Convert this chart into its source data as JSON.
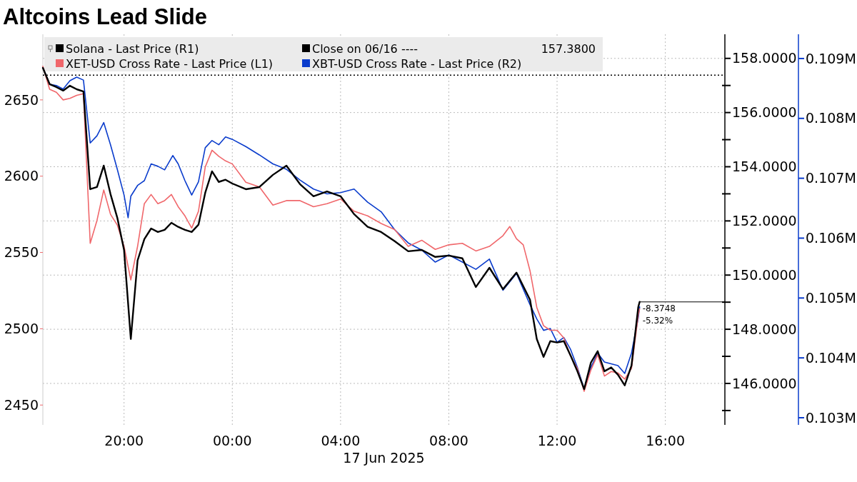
{
  "chart_data": {
    "type": "line",
    "title": "Altcoins Lead Slide",
    "xlabel": "17 Jun 2025",
    "xlim": [
      "2025-06-16T17:00",
      "2025-06-17T18:12"
    ],
    "xticks": [
      {
        "value": "2025-06-16T20:00",
        "label": "20:00"
      },
      {
        "value": "2025-06-17T00:00",
        "label": "00:00"
      },
      {
        "value": "2025-06-17T04:00",
        "label": "04:00"
      },
      {
        "value": "2025-06-17T08:00",
        "label": "08:00"
      },
      {
        "value": "2025-06-17T12:00",
        "label": "12:00"
      },
      {
        "value": "2025-06-17T16:00",
        "label": "16:00"
      }
    ],
    "ylim": [
      2437,
      2693
    ],
    "yticks": [
      2450,
      2500,
      2550,
      2600,
      2650
    ],
    "y2lim": [
      144.47,
      158.89
    ],
    "y2ticks": [
      {
        "value": 145,
        "label": null
      },
      {
        "value": 146,
        "label": "146.0000"
      },
      {
        "value": 147,
        "label": null
      },
      {
        "value": 148,
        "label": "148.0000"
      },
      {
        "value": 149,
        "label": null
      },
      {
        "value": 150,
        "label": "150.0000"
      },
      {
        "value": 151,
        "label": null
      },
      {
        "value": 152,
        "label": "152.0000"
      },
      {
        "value": 153,
        "label": null
      },
      {
        "value": 154,
        "label": "154.0000"
      },
      {
        "value": 155,
        "label": null
      },
      {
        "value": 156,
        "label": "156.0000"
      },
      {
        "value": 157,
        "label": null
      },
      {
        "value": 158,
        "label": "158.0000"
      }
    ],
    "y3lim": [
      102881,
      109405
    ],
    "y3ticks": [
      {
        "value": 103000,
        "label": "0.103M"
      },
      {
        "value": 104000,
        "label": "0.104M"
      },
      {
        "value": 105000,
        "label": "0.105M"
      },
      {
        "value": 106000,
        "label": "0.106M"
      },
      {
        "value": 107000,
        "label": "0.107M"
      },
      {
        "value": 108000,
        "label": "0.108M"
      },
      {
        "value": 109000,
        "label": "0.109M"
      }
    ],
    "grid": true,
    "legend": "top left",
    "line_style": "solid",
    "marker": "none",
    "ref_lines": [
      {
        "axis": "y2",
        "value": 157.38,
        "label": "Close on 06/16 ----",
        "color": "#000000",
        "line_style": "dotted"
      }
    ],
    "annotations": [
      "157.3800",
      "-8.3748",
      "-5.32%"
    ],
    "series": [
      {
        "name": "Solana - Last Price (R1)",
        "color": "#000000",
        "axis": "y2",
        "x": [
          "2025-06-16T17:00",
          "2025-06-16T17:15",
          "2025-06-16T17:30",
          "2025-06-16T17:45",
          "2025-06-16T18:00",
          "2025-06-16T18:15",
          "2025-06-16T18:30",
          "2025-06-16T18:45",
          "2025-06-16T19:00",
          "2025-06-16T19:15",
          "2025-06-16T19:30",
          "2025-06-16T19:45",
          "2025-06-16T20:00",
          "2025-06-16T20:15",
          "2025-06-16T20:30",
          "2025-06-16T20:45",
          "2025-06-16T21:00",
          "2025-06-16T21:15",
          "2025-06-16T21:30",
          "2025-06-16T21:45",
          "2025-06-16T22:00",
          "2025-06-16T22:15",
          "2025-06-16T22:30",
          "2025-06-16T22:45",
          "2025-06-16T23:00",
          "2025-06-16T23:15",
          "2025-06-16T23:30",
          "2025-06-16T23:45",
          "2025-06-17T00:00",
          "2025-06-17T00:30",
          "2025-06-17T01:00",
          "2025-06-17T01:30",
          "2025-06-17T02:00",
          "2025-06-17T02:30",
          "2025-06-17T03:00",
          "2025-06-17T03:30",
          "2025-06-17T04:00",
          "2025-06-17T04:30",
          "2025-06-17T05:00",
          "2025-06-17T05:30",
          "2025-06-17T06:00",
          "2025-06-17T06:30",
          "2025-06-17T07:00",
          "2025-06-17T07:30",
          "2025-06-17T08:00",
          "2025-06-17T08:30",
          "2025-06-17T09:00",
          "2025-06-17T09:30",
          "2025-06-17T10:00",
          "2025-06-17T10:30",
          "2025-06-17T11:00",
          "2025-06-17T11:15",
          "2025-06-17T11:30",
          "2025-06-17T11:45",
          "2025-06-17T12:00",
          "2025-06-17T12:15",
          "2025-06-17T12:30",
          "2025-06-17T12:45",
          "2025-06-17T13:00",
          "2025-06-17T13:15",
          "2025-06-17T13:30",
          "2025-06-17T13:45",
          "2025-06-17T14:00",
          "2025-06-17T14:15",
          "2025-06-17T14:30",
          "2025-06-17T14:45",
          "2025-06-17T15:00",
          "2025-06-17T15:03"
        ],
        "values": [
          157.65,
          157.05,
          156.94,
          156.81,
          156.99,
          156.86,
          156.78,
          153.17,
          153.25,
          154.04,
          152.99,
          152.12,
          150.93,
          147.64,
          150.54,
          151.33,
          151.72,
          151.59,
          151.67,
          151.93,
          151.78,
          151.67,
          151.59,
          151.86,
          153.04,
          153.83,
          153.44,
          153.52,
          153.38,
          153.17,
          153.25,
          153.7,
          154.04,
          153.36,
          152.91,
          153.09,
          152.91,
          152.25,
          151.78,
          151.59,
          151.25,
          150.88,
          150.93,
          150.67,
          150.72,
          150.62,
          149.56,
          150.27,
          149.48,
          150.09,
          149.09,
          147.64,
          146.98,
          147.56,
          147.51,
          147.56,
          147.03,
          146.45,
          145.79,
          146.77,
          147.19,
          146.45,
          146.59,
          146.32,
          145.93,
          146.66,
          148.82,
          149.01
        ]
      },
      {
        "name": "XET-USD Cross Rate - Last Price (L1)",
        "color": "#f0676b",
        "x": [
          "2025-06-16T17:00",
          "2025-06-16T17:15",
          "2025-06-16T17:30",
          "2025-06-16T17:45",
          "2025-06-16T18:00",
          "2025-06-16T18:15",
          "2025-06-16T18:30",
          "2025-06-16T18:45",
          "2025-06-16T19:00",
          "2025-06-16T19:15",
          "2025-06-16T19:30",
          "2025-06-16T19:45",
          "2025-06-16T20:00",
          "2025-06-16T20:15",
          "2025-06-16T20:30",
          "2025-06-16T20:45",
          "2025-06-16T21:00",
          "2025-06-16T21:15",
          "2025-06-16T21:30",
          "2025-06-16T21:45",
          "2025-06-16T22:00",
          "2025-06-16T22:15",
          "2025-06-16T22:30",
          "2025-06-16T22:45",
          "2025-06-16T23:00",
          "2025-06-16T23:15",
          "2025-06-16T23:30",
          "2025-06-16T23:45",
          "2025-06-17T00:00",
          "2025-06-17T00:30",
          "2025-06-17T01:00",
          "2025-06-17T01:30",
          "2025-06-17T02:00",
          "2025-06-17T02:30",
          "2025-06-17T03:00",
          "2025-06-17T03:30",
          "2025-06-17T04:00",
          "2025-06-17T04:30",
          "2025-06-17T05:00",
          "2025-06-17T05:30",
          "2025-06-17T06:00",
          "2025-06-17T06:30",
          "2025-06-17T07:00",
          "2025-06-17T07:30",
          "2025-06-17T08:00",
          "2025-06-17T08:30",
          "2025-06-17T09:00",
          "2025-06-17T09:30",
          "2025-06-17T10:00",
          "2025-06-17T10:15",
          "2025-06-17T10:30",
          "2025-06-17T10:45",
          "2025-06-17T11:00",
          "2025-06-17T11:15",
          "2025-06-17T11:30",
          "2025-06-17T11:45",
          "2025-06-17T12:00",
          "2025-06-17T12:15",
          "2025-06-17T12:30",
          "2025-06-17T12:45",
          "2025-06-17T13:00",
          "2025-06-17T13:15",
          "2025-06-17T13:30",
          "2025-06-17T13:45",
          "2025-06-17T14:00",
          "2025-06-17T14:15",
          "2025-06-17T14:30",
          "2025-06-17T14:45",
          "2025-06-17T15:00",
          "2025-06-17T15:03"
        ],
        "values": [
          2672,
          2657,
          2655,
          2650,
          2651,
          2653,
          2654,
          2556,
          2571,
          2591,
          2575,
          2568,
          2554,
          2532,
          2554,
          2582,
          2588,
          2582,
          2584,
          2588,
          2580,
          2574,
          2566,
          2577,
          2606,
          2617,
          2613,
          2610,
          2608,
          2596,
          2593,
          2581,
          2584,
          2584,
          2580,
          2582,
          2585,
          2577,
          2574,
          2569,
          2565,
          2554,
          2558,
          2552,
          2555,
          2556,
          2551,
          2554,
          2561,
          2567,
          2559,
          2555,
          2538,
          2514,
          2502,
          2499,
          2499,
          2494,
          2482,
          2474,
          2459,
          2473,
          2483,
          2469,
          2472,
          2471,
          2467,
          2474,
          2509,
          2513
        ]
      },
      {
        "name": "XBT-USD Cross Rate - Last Price (R2)",
        "color": "#0a3ccc",
        "axis": "y3",
        "x": [
          "2025-06-16T17:00",
          "2025-06-16T17:15",
          "2025-06-16T17:30",
          "2025-06-16T17:45",
          "2025-06-16T18:00",
          "2025-06-16T18:15",
          "2025-06-16T18:30",
          "2025-06-16T18:45",
          "2025-06-16T19:00",
          "2025-06-16T19:15",
          "2025-06-16T19:30",
          "2025-06-16T19:45",
          "2025-06-16T20:00",
          "2025-06-16T20:09",
          "2025-06-16T20:15",
          "2025-06-16T20:30",
          "2025-06-16T20:45",
          "2025-06-16T21:00",
          "2025-06-16T21:15",
          "2025-06-16T21:30",
          "2025-06-16T21:48",
          "2025-06-16T22:00",
          "2025-06-16T22:15",
          "2025-06-16T22:30",
          "2025-06-16T22:45",
          "2025-06-16T23:00",
          "2025-06-16T23:15",
          "2025-06-16T23:30",
          "2025-06-16T23:45",
          "2025-06-17T00:00",
          "2025-06-17T00:30",
          "2025-06-17T01:00",
          "2025-06-17T01:30",
          "2025-06-17T02:00",
          "2025-06-17T02:30",
          "2025-06-17T03:00",
          "2025-06-17T03:30",
          "2025-06-17T04:00",
          "2025-06-17T04:30",
          "2025-06-17T05:00",
          "2025-06-17T05:30",
          "2025-06-17T06:00",
          "2025-06-17T06:30",
          "2025-06-17T07:00",
          "2025-06-17T07:30",
          "2025-06-17T08:00",
          "2025-06-17T08:30",
          "2025-06-17T09:00",
          "2025-06-17T09:30",
          "2025-06-17T10:00",
          "2025-06-17T10:30",
          "2025-06-17T11:00",
          "2025-06-17T11:15",
          "2025-06-17T11:30",
          "2025-06-17T11:45",
          "2025-06-17T12:00",
          "2025-06-17T12:15",
          "2025-06-17T12:30",
          "2025-06-17T12:45",
          "2025-06-17T13:00",
          "2025-06-17T13:15",
          "2025-06-17T13:30",
          "2025-06-17T13:45",
          "2025-06-17T14:00",
          "2025-06-17T14:15",
          "2025-06-17T14:30",
          "2025-06-17T14:45",
          "2025-06-17T15:00",
          "2025-06-17T15:03"
        ],
        "values": [
          108850,
          108570,
          108550,
          108490,
          108630,
          108690,
          108640,
          107590,
          107710,
          107930,
          107560,
          107150,
          106720,
          106340,
          106700,
          106880,
          106960,
          107240,
          107200,
          107140,
          107380,
          107240,
          106960,
          106720,
          106940,
          107510,
          107630,
          107560,
          107690,
          107650,
          107530,
          107390,
          107240,
          107150,
          106970,
          106820,
          106740,
          106760,
          106820,
          106600,
          106440,
          106140,
          105920,
          105800,
          105600,
          105720,
          105600,
          105480,
          105650,
          105130,
          105410,
          104890,
          104650,
          104460,
          104490,
          104260,
          104340,
          104140,
          103840,
          103480,
          103840,
          104080,
          103930,
          103900,
          103870,
          103740,
          104080,
          104670,
          104850
        ]
      }
    ]
  }
}
